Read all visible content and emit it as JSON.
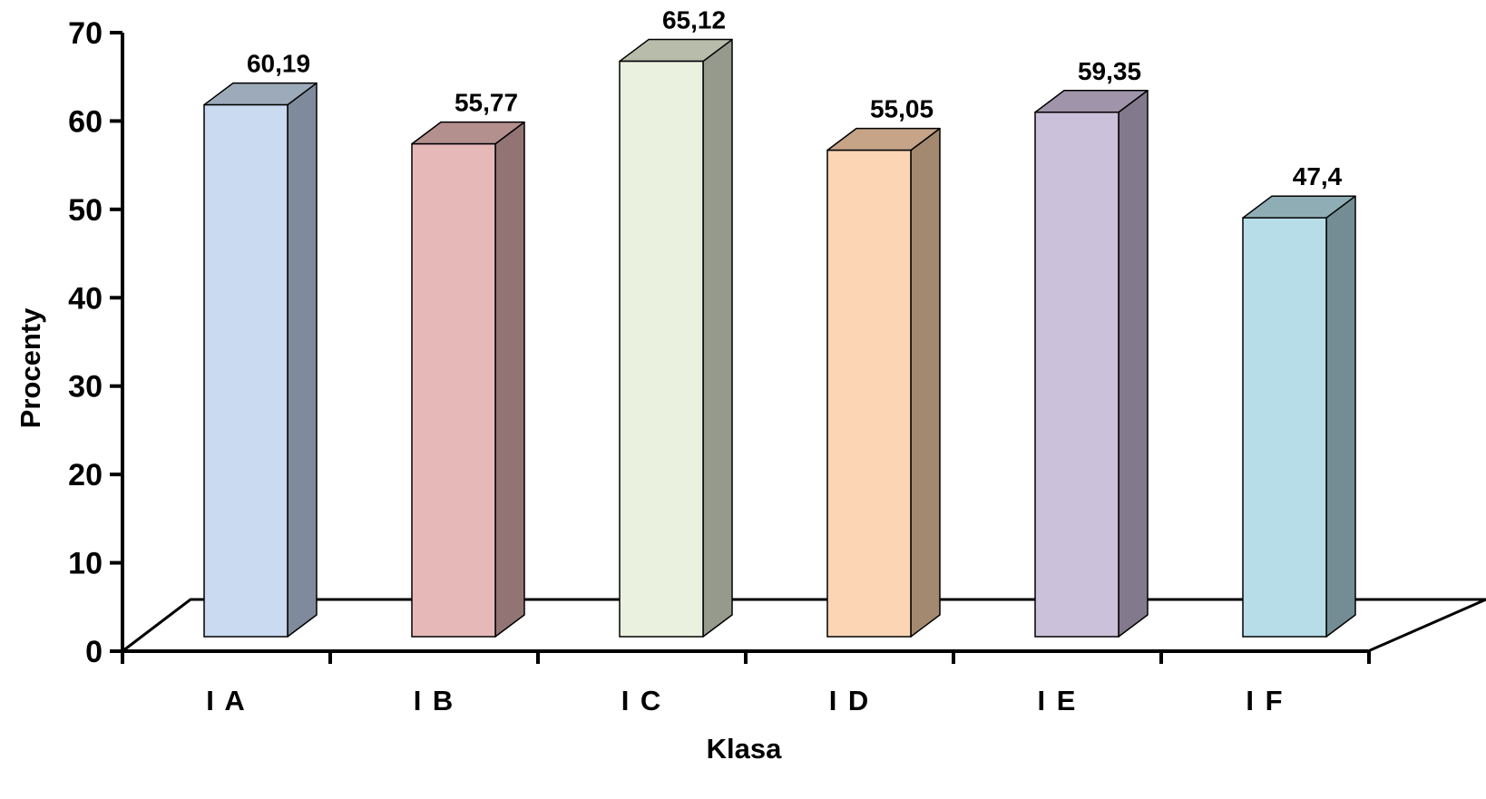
{
  "chart_data": {
    "type": "bar",
    "style": "3d-column",
    "categories": [
      "I A",
      "I B",
      "I C",
      "I D",
      "I E",
      "I F"
    ],
    "values": [
      60.19,
      55.77,
      65.12,
      55.05,
      59.35,
      47.4
    ],
    "value_labels": [
      "60,19",
      "55,77",
      "65,12",
      "55,05",
      "59,35",
      "47,4"
    ],
    "xlabel": "Klasa",
    "ylabel": "Procenty",
    "ylim": [
      0,
      70
    ],
    "yticks": [
      "0",
      "10",
      "20",
      "30",
      "40",
      "50",
      "60",
      "70"
    ],
    "grid": false,
    "legend": "none",
    "colors": {
      "front": [
        "#c9daf1",
        "#e6b9b8",
        "#ebf1df",
        "#fcd5b5",
        "#ccc1da",
        "#b7dee8"
      ],
      "side": [
        "#7f8b9c",
        "#937474",
        "#959a8c",
        "#a3896f",
        "#827a8c",
        "#748d94"
      ],
      "top": [
        "#9daab9",
        "#b38f8e",
        "#b7bcab",
        "#c5a488",
        "#a094ab",
        "#8fadb5"
      ]
    }
  }
}
